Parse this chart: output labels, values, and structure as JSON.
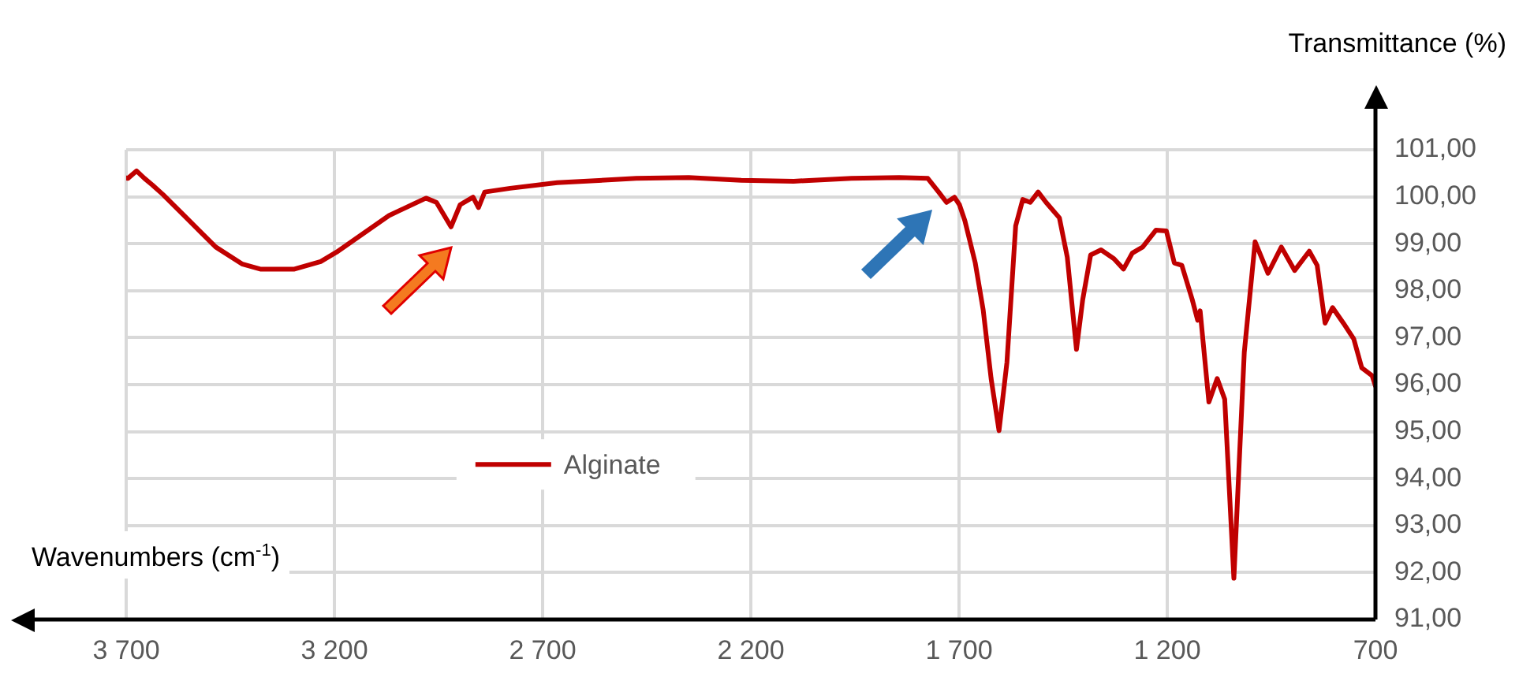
{
  "chart_data": {
    "type": "line",
    "xlabel": "Wavenumbers (cm$^{-1}$)",
    "ylabel": "Transmittance (%)",
    "x": [
      3700,
      3696,
      3675,
      3656,
      3637,
      3612,
      3561,
      3485,
      3422,
      3378,
      3296,
      3233,
      3195,
      3132,
      3069,
      2980,
      2955,
      2920,
      2898,
      2867,
      2854,
      2839,
      2778,
      2665,
      2475,
      2349,
      2223,
      2097,
      1958,
      1844,
      1775,
      1749,
      1730,
      1711,
      1699,
      1686,
      1661,
      1642,
      1623,
      1604,
      1585,
      1564,
      1547,
      1529,
      1510,
      1491,
      1459,
      1440,
      1418,
      1403,
      1384,
      1359,
      1328,
      1305,
      1284,
      1259,
      1227,
      1202,
      1183,
      1165,
      1140,
      1127,
      1121,
      1100,
      1080,
      1062,
      1040,
      1015,
      989,
      958,
      926,
      894,
      859,
      840,
      821,
      803,
      777,
      752,
      733,
      708,
      700
    ],
    "series": [
      {
        "name": "Alginate",
        "color": "#c00000",
        "values": [
          100.4,
          100.39,
          100.55,
          100.39,
          100.25,
          100.05,
          99.6,
          98.93,
          98.57,
          98.46,
          98.46,
          98.62,
          98.82,
          99.21,
          99.6,
          99.97,
          99.88,
          99.36,
          99.83,
          99.99,
          99.77,
          100.1,
          100.18,
          100.3,
          100.39,
          100.41,
          100.35,
          100.33,
          100.39,
          100.41,
          100.39,
          100.1,
          99.88,
          99.99,
          99.83,
          99.49,
          98.59,
          97.59,
          96.13,
          95.02,
          96.47,
          99.38,
          99.94,
          99.88,
          100.1,
          99.88,
          99.55,
          98.71,
          96.75,
          97.81,
          98.76,
          98.87,
          98.68,
          98.46,
          98.8,
          98.93,
          99.29,
          99.27,
          98.59,
          98.54,
          97.81,
          97.37,
          97.57,
          95.63,
          96.13,
          95.69,
          91.88,
          96.69,
          99.04,
          98.37,
          98.93,
          98.43,
          98.84,
          98.54,
          97.31,
          97.64,
          97.31,
          96.97,
          96.36,
          96.19,
          95.97
        ]
      }
    ],
    "xlim": [
      3700,
      700
    ],
    "xticks": [
      {
        "value": 3700,
        "label": "3 700"
      },
      {
        "value": 3200,
        "label": "3 200"
      },
      {
        "value": 2700,
        "label": "2 700"
      },
      {
        "value": 2200,
        "label": "2 200"
      },
      {
        "value": 1700,
        "label": "1 700"
      },
      {
        "value": 1200,
        "label": "1 200"
      },
      {
        "value": 700,
        "label": "700"
      }
    ],
    "ylim": [
      91,
      101
    ],
    "yticks": [
      {
        "value": 91,
        "label": "91,00"
      },
      {
        "value": 92,
        "label": "92,00"
      },
      {
        "value": 93,
        "label": "93,00"
      },
      {
        "value": 94,
        "label": "94,00"
      },
      {
        "value": 95,
        "label": "95,00"
      },
      {
        "value": 96,
        "label": "96,00"
      },
      {
        "value": 97,
        "label": "97,00"
      },
      {
        "value": 98,
        "label": "98,00"
      },
      {
        "value": 99,
        "label": "99,00"
      },
      {
        "value": 100,
        "label": "100,00"
      },
      {
        "value": 101,
        "label": "101,00"
      }
    ],
    "grid": true,
    "legend": "bottom",
    "marker": "none",
    "line_style": "solid"
  }
}
